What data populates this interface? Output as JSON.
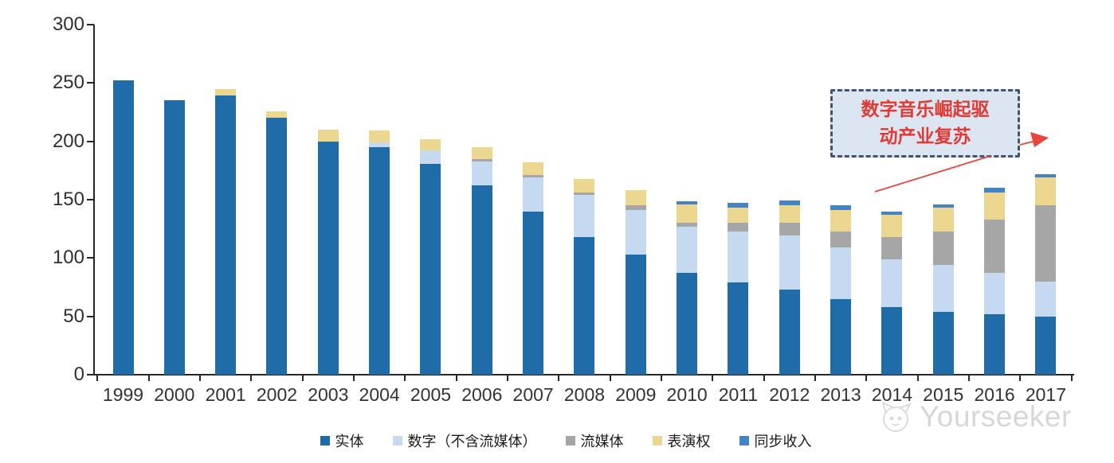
{
  "chart_data": {
    "type": "bar",
    "stacked": true,
    "title": "",
    "xlabel": "",
    "ylabel": "",
    "ylim": [
      0,
      300
    ],
    "yticks": [
      0,
      50,
      100,
      150,
      200,
      250,
      300
    ],
    "grid": false,
    "legend_position": "bottom",
    "categories": [
      "1999",
      "2000",
      "2001",
      "2002",
      "2003",
      "2004",
      "2005",
      "2006",
      "2007",
      "2008",
      "2009",
      "2010",
      "2011",
      "2012",
      "2013",
      "2014",
      "2015",
      "2016",
      "2017"
    ],
    "series": [
      {
        "name": "实体",
        "color": "#1F6CA8",
        "values": [
          252,
          235,
          239,
          220,
          200,
          195,
          181,
          162,
          140,
          118,
          103,
          87,
          79,
          73,
          65,
          58,
          54,
          52,
          50
        ]
      },
      {
        "name": "数字（不含流媒体）",
        "color": "#C5D9F1",
        "values": [
          0,
          0,
          0,
          0,
          0,
          4,
          11,
          21,
          29,
          36,
          38,
          40,
          44,
          46,
          44,
          41,
          40,
          35,
          30
        ]
      },
      {
        "name": "流媒体",
        "color": "#A6A6A6",
        "values": [
          0,
          0,
          0,
          0,
          0,
          0,
          0,
          2,
          2,
          2,
          4,
          3,
          7,
          11,
          14,
          19,
          29,
          46,
          65
        ]
      },
      {
        "name": "表演权",
        "color": "#EBD78F",
        "values": [
          0,
          0,
          6,
          6,
          10,
          10,
          10,
          10,
          11,
          12,
          13,
          16,
          13,
          15,
          18,
          19,
          20,
          23,
          24
        ]
      },
      {
        "name": "同步收入",
        "color": "#4584C4",
        "values": [
          0,
          0,
          0,
          0,
          0,
          0,
          0,
          0,
          0,
          0,
          0,
          3,
          4,
          4,
          4,
          3,
          3,
          4,
          3
        ]
      }
    ]
  },
  "annotation": {
    "line1": "数字音乐崛起驱",
    "line2": "动产业复苏",
    "text_color": "#E03A34",
    "box_fill": "#DCE6F2",
    "box_border": "#44546A",
    "arrow_color": "#E8453C"
  },
  "watermark": {
    "text": "Yourseeker",
    "color": "#A8A8A8"
  }
}
